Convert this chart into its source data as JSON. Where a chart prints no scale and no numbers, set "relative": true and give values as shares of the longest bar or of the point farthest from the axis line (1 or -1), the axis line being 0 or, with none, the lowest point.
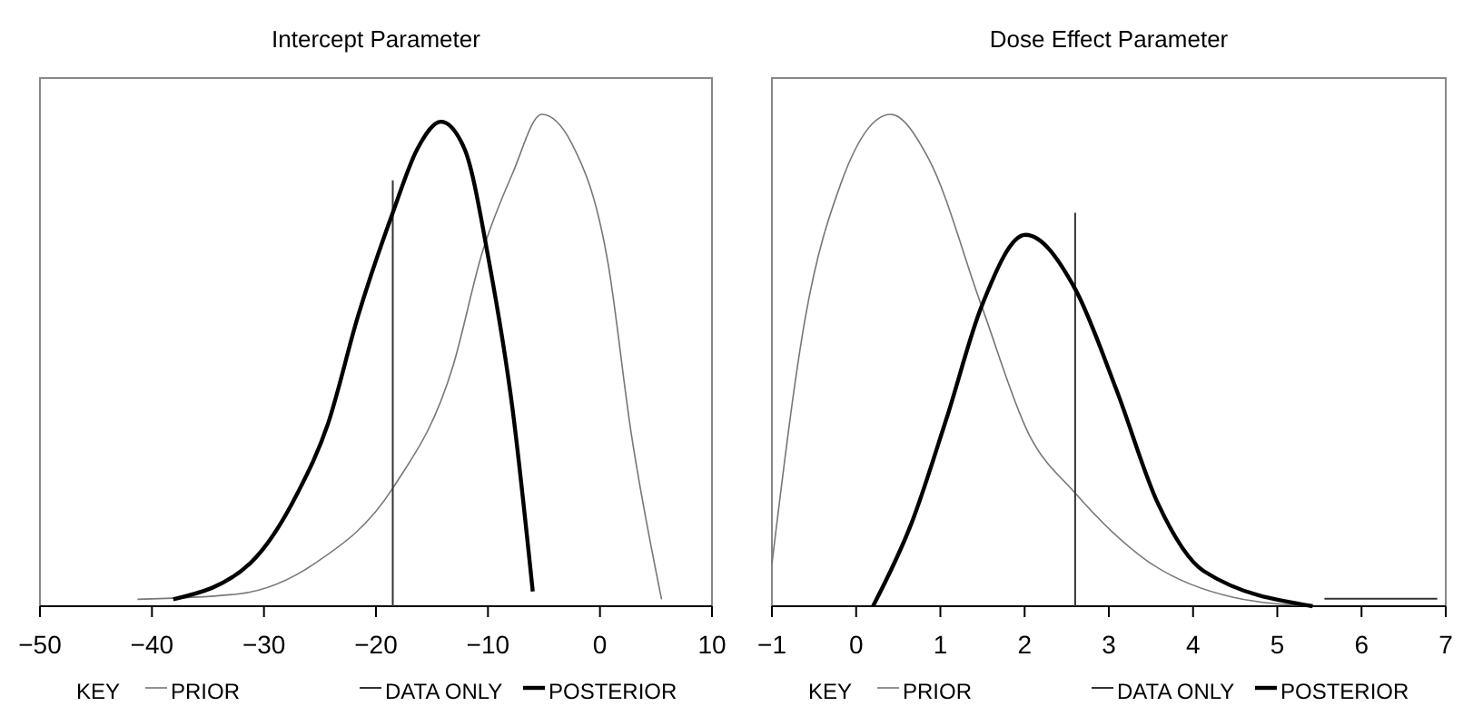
{
  "chart_data": [
    {
      "type": "line",
      "title": "Intercept Parameter",
      "relative": true,
      "xlim": [
        -50,
        10
      ],
      "xticks": [
        -50,
        -40,
        -30,
        -20,
        -10,
        0,
        10
      ],
      "legend": "bottom",
      "legend_title": "KEY",
      "grid": false,
      "series": [
        {
          "name": "PRIOR",
          "color": "#777777",
          "x": [
            -41.3,
            -32.3,
            -25.4,
            -18.5,
            -13.1,
            -10.5,
            -7.8,
            -5.2,
            -2.5,
            0.7,
            2.8,
            5.5
          ],
          "values": [
            0.014,
            0.025,
            0.088,
            0.24,
            0.49,
            0.72,
            0.88,
            1.0,
            0.94,
            0.7,
            0.35,
            0.014
          ]
        },
        {
          "name": "DATA ONLY",
          "color": "#333333",
          "x": [
            -18.5,
            -18.5
          ],
          "values": [
            0,
            0.866
          ]
        },
        {
          "name": "POSTERIOR",
          "color": "#000000",
          "x": [
            -38.1,
            -31.2,
            -27.0,
            -24.3,
            -21.6,
            -18.5,
            -16.3,
            -14.2,
            -12.1,
            -9.9,
            -7.8,
            -6.0
          ],
          "values": [
            0.014,
            0.088,
            0.23,
            0.37,
            0.59,
            0.8,
            0.93,
            0.985,
            0.93,
            0.7,
            0.4,
            0.03
          ]
        }
      ]
    },
    {
      "type": "line",
      "title": "Dose Effect Parameter",
      "relative": true,
      "xlim": [
        -1,
        7
      ],
      "xticks": [
        -1,
        0,
        1,
        2,
        3,
        4,
        5,
        6,
        7
      ],
      "legend": "bottom",
      "legend_title": "KEY",
      "grid": false,
      "series": [
        {
          "name": "PRIOR",
          "color": "#777777",
          "x": [
            -1,
            -0.6,
            -0.18,
            0.41,
            0.86,
            1.49,
            2.05,
            2.6,
            3.44,
            4.48,
            5.42
          ],
          "values": [
            0.086,
            0.59,
            0.86,
            1.0,
            0.91,
            0.61,
            0.35,
            0.23,
            0.094,
            0.018,
            0
          ]
        },
        {
          "name": "DATA ONLY",
          "color": "#333333",
          "x": [
            2.6,
            2.6,
            null,
            5.56,
            6.9
          ],
          "values": [
            0,
            0.8,
            null,
            0.015,
            0.015
          ]
        },
        {
          "name": "POSTERIOR",
          "color": "#000000",
          "x": [
            0.2,
            0.66,
            1.07,
            1.49,
            2.01,
            2.6,
            3.09,
            3.58,
            4.13,
            5.42
          ],
          "values": [
            0,
            0.17,
            0.38,
            0.61,
            0.755,
            0.645,
            0.44,
            0.21,
            0.071,
            0
          ]
        }
      ]
    }
  ]
}
